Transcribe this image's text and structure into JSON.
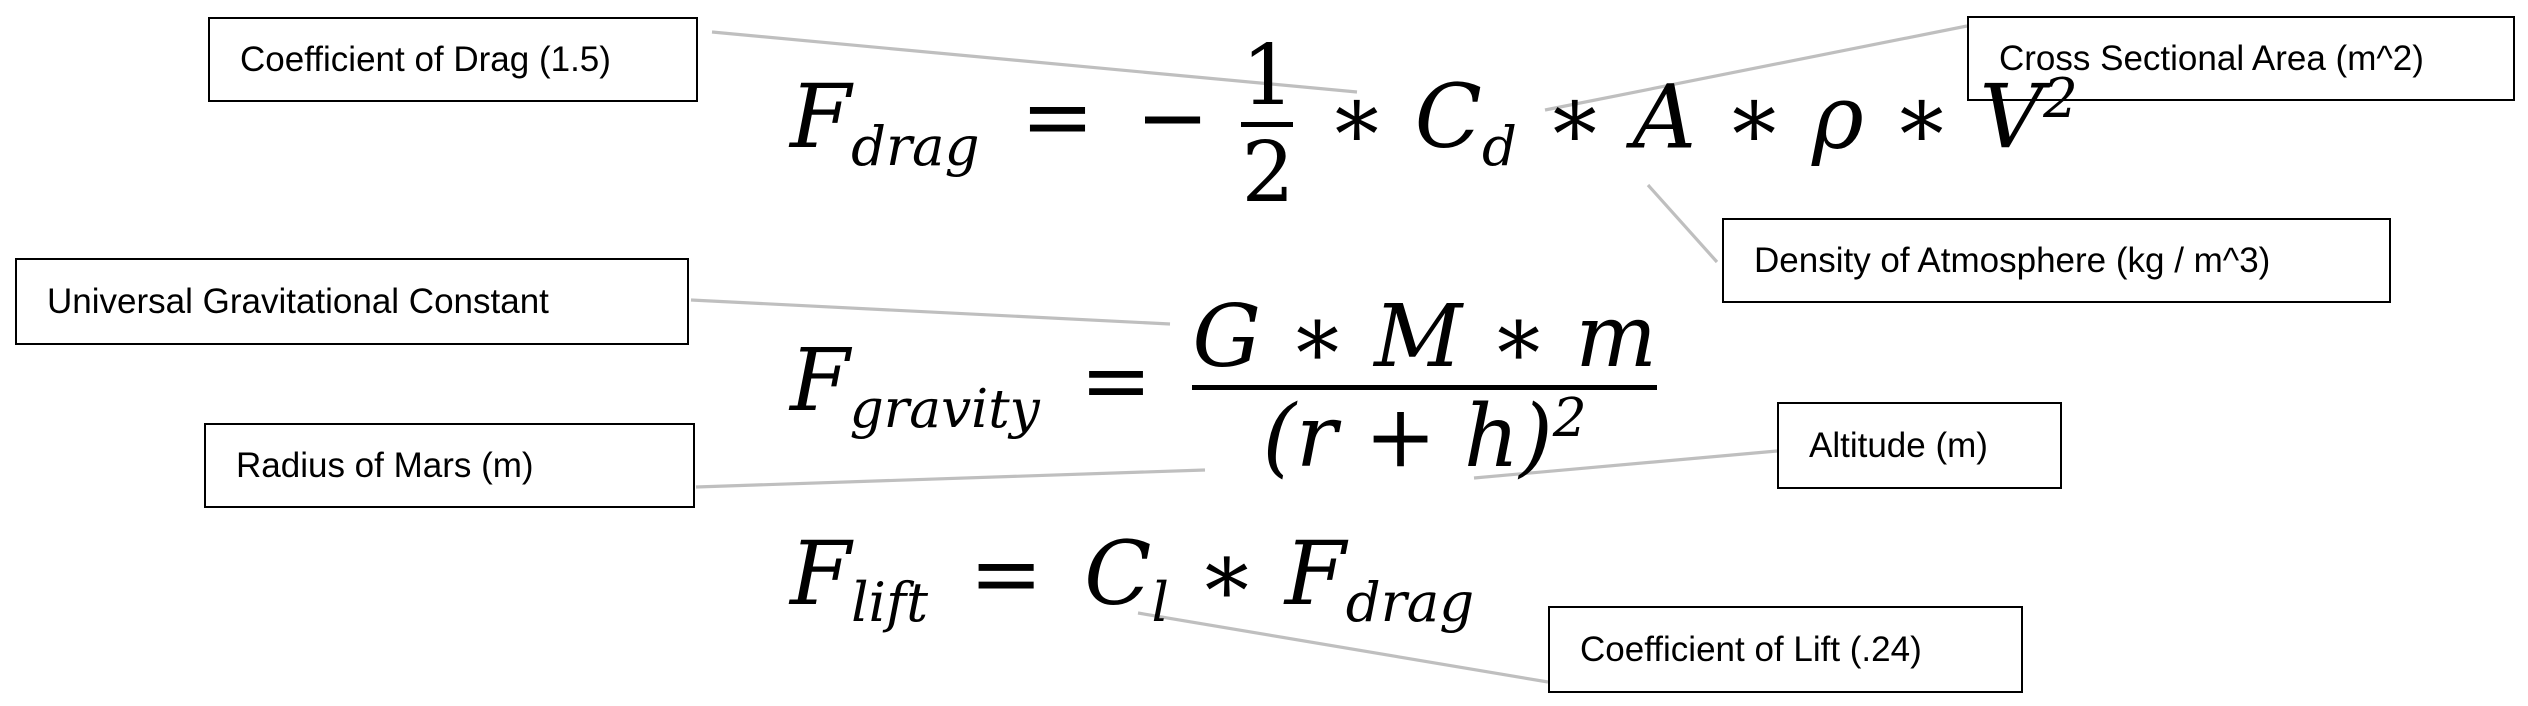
{
  "labels": {
    "drag_coefficient": "Coefficient of Drag (1.5)",
    "cross_section": "Cross Sectional Area (m^2)",
    "density": "Density of Atmosphere (kg / m^3)",
    "gravitational_constant": "Universal Gravitational Constant",
    "radius": "Radius of Mars (m)",
    "altitude": "Altitude (m)",
    "lift_coefficient": "Coefficient of Lift (.24)"
  },
  "equations": {
    "drag": {
      "lhs": "F",
      "lhs_sub": "drag",
      "equals": "=",
      "minus": "−",
      "frac_num": "1",
      "frac_den": "2",
      "rhs": "C",
      "rhs_sub": "d",
      "area": "A",
      "density": "ρ",
      "velocity": "V",
      "velocity_exp": "2",
      "times": "∗"
    },
    "gravity": {
      "lhs": "F",
      "lhs_sub": "gravity",
      "equals": "=",
      "numerator": "G ∗ M ∗ m",
      "denominator": "(r + h)",
      "denominator_exp": "2"
    },
    "lift": {
      "lhs": "F",
      "lhs_sub": "lift",
      "equals": "=",
      "coef": "C",
      "coef_sub": "l",
      "times": "∗",
      "force": "F",
      "force_sub": "drag"
    }
  },
  "colors": {
    "leader": "#bfbfbf",
    "border": "#000000",
    "text": "#000000",
    "background": "#ffffff"
  }
}
